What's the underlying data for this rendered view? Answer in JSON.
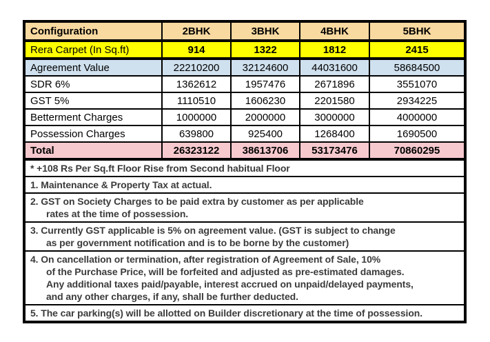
{
  "table": {
    "header": {
      "labels": [
        "Configuration",
        "2BHK",
        "3BHK",
        "4BHK",
        "5BHK"
      ],
      "bg": "#F8D9A0"
    },
    "rows": [
      {
        "label": "Rera Carpet (In Sq.ft)",
        "values": [
          "914",
          "1322",
          "1812",
          "2415"
        ],
        "bg": "#FFFF00",
        "values_bold": true,
        "label_bold": false,
        "thick_bottom": true
      },
      {
        "label": "Agreement Value",
        "values": [
          "22210200",
          "32124600",
          "44031600",
          "58684500"
        ],
        "bg": "#CFE0EE",
        "values_bold": false,
        "label_bold": false,
        "thick_bottom": false
      },
      {
        "label": "SDR 6%",
        "values": [
          "1362612",
          "1957476",
          "2671896",
          "3551070"
        ],
        "bg": "#FFFFFF",
        "values_bold": false,
        "label_bold": false,
        "thick_bottom": false
      },
      {
        "label": "GST 5%",
        "values": [
          "1110510",
          "1606230",
          "2201580",
          "2934225"
        ],
        "bg": "#FFFFFF",
        "values_bold": false,
        "label_bold": false,
        "thick_bottom": false
      },
      {
        "label": "Betterment Charges",
        "values": [
          "1000000",
          "2000000",
          "3000000",
          "4000000"
        ],
        "bg": "#FFFFFF",
        "values_bold": false,
        "label_bold": false,
        "thick_bottom": false
      },
      {
        "label": "Possession Charges",
        "values": [
          "639800",
          "925400",
          "1268400",
          "1690500"
        ],
        "bg": "#FFFFFF",
        "values_bold": false,
        "label_bold": false,
        "thick_bottom": false
      },
      {
        "label": "Total",
        "values": [
          "26323122",
          "38613706",
          "53173476",
          "70860295"
        ],
        "bg": "#F6C9CE",
        "values_bold": true,
        "label_bold": true,
        "thick_bottom": true
      }
    ]
  },
  "notes": [
    {
      "lines": [
        "* +108 Rs Per Sq.ft Floor Rise from Second habitual Floor"
      ]
    },
    {
      "lines": [
        "1. Maintenance & Property Tax at actual."
      ]
    },
    {
      "lines": [
        "2. GST on Society Charges to be paid extra by customer as per applicable",
        "rates at the time of possession."
      ]
    },
    {
      "lines": [
        "3. Currently GST applicable is 5% on agreement value. (GST is subject to change",
        "as per government notification and is to be borne by the customer)"
      ]
    },
    {
      "lines": [
        "4. On cancellation or termination, after registration of Agreement of Sale, 10%",
        "of the Purchase Price, will be forfeited and adjusted as pre-estimated damages.",
        "Any additional taxes paid/payable, interest accrued on unpaid/delayed payments,",
        "and any other charges, if any, shall be further deducted."
      ]
    },
    {
      "lines": [
        "5. The car parking(s) will be allotted on Builder discretionary at the time of possession."
      ]
    }
  ],
  "colors": {
    "header_bg": "#F8D9A0",
    "rera_bg": "#FFFF00",
    "agreement_bg": "#CFE0EE",
    "total_bg": "#F6C9CE",
    "border": "#000000",
    "note_text": "#3B3B3B",
    "table_text": "#000000",
    "page_bg": "#FFFFFF"
  }
}
